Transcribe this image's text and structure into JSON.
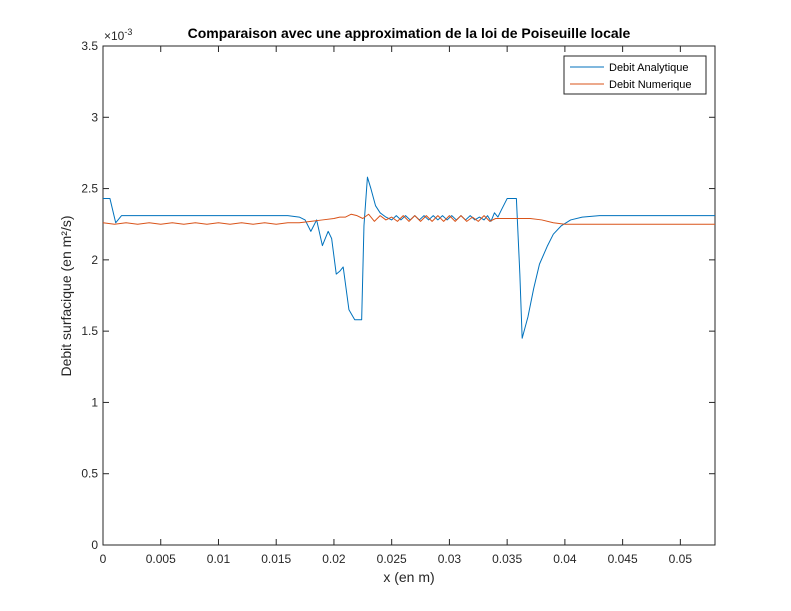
{
  "chart_data": {
    "type": "line",
    "title": "Comparaison avec une approximation de la loi de Poiseuille locale",
    "xlabel": "x (en m)",
    "ylabel": "Debit surfacique (en m²/s)",
    "exponent_label": "×10",
    "exponent_power": "-3",
    "xlim": [
      0,
      0.053
    ],
    "ylim": [
      0,
      3.5
    ],
    "x_ticks": [
      0,
      0.005,
      0.01,
      0.015,
      0.02,
      0.025,
      0.03,
      0.035,
      0.04,
      0.045,
      0.05
    ],
    "x_tick_labels": [
      "0",
      "0.005",
      "0.01",
      "0.015",
      "0.02",
      "0.025",
      "0.03",
      "0.035",
      "0.04",
      "0.045",
      "0.05"
    ],
    "y_ticks": [
      0,
      0.5,
      1,
      1.5,
      2,
      2.5,
      3,
      3.5
    ],
    "y_tick_labels": [
      "0",
      "0.5",
      "1",
      "1.5",
      "2",
      "2.5",
      "3",
      "3.5"
    ],
    "grid": false,
    "legend_position": "top-right",
    "series": [
      {
        "name": "Debit Analytique",
        "color": "#0072BD",
        "points": [
          [
            0,
            2.43
          ],
          [
            0.0006,
            2.43
          ],
          [
            0.0011,
            2.26
          ],
          [
            0.0016,
            2.31
          ],
          [
            0.003,
            2.31
          ],
          [
            0.006,
            2.31
          ],
          [
            0.009,
            2.31
          ],
          [
            0.012,
            2.31
          ],
          [
            0.014,
            2.31
          ],
          [
            0.016,
            2.31
          ],
          [
            0.017,
            2.3
          ],
          [
            0.0175,
            2.28
          ],
          [
            0.018,
            2.2
          ],
          [
            0.0185,
            2.28
          ],
          [
            0.019,
            2.1
          ],
          [
            0.0195,
            2.2
          ],
          [
            0.0198,
            2.15
          ],
          [
            0.0202,
            1.9
          ],
          [
            0.0205,
            1.92
          ],
          [
            0.0208,
            1.95
          ],
          [
            0.0213,
            1.65
          ],
          [
            0.0218,
            1.58
          ],
          [
            0.0224,
            1.58
          ],
          [
            0.0226,
            2.24
          ],
          [
            0.0229,
            2.58
          ],
          [
            0.0232,
            2.5
          ],
          [
            0.0236,
            2.38
          ],
          [
            0.024,
            2.33
          ],
          [
            0.0245,
            2.3
          ],
          [
            0.025,
            2.28
          ],
          [
            0.0254,
            2.31
          ],
          [
            0.0258,
            2.28
          ],
          [
            0.0262,
            2.31
          ],
          [
            0.0266,
            2.28
          ],
          [
            0.027,
            2.31
          ],
          [
            0.0274,
            2.28
          ],
          [
            0.0278,
            2.31
          ],
          [
            0.0282,
            2.28
          ],
          [
            0.0286,
            2.31
          ],
          [
            0.029,
            2.28
          ],
          [
            0.0294,
            2.31
          ],
          [
            0.0298,
            2.28
          ],
          [
            0.0302,
            2.31
          ],
          [
            0.0306,
            2.28
          ],
          [
            0.031,
            2.31
          ],
          [
            0.0314,
            2.28
          ],
          [
            0.0318,
            2.31
          ],
          [
            0.0322,
            2.28
          ],
          [
            0.0326,
            2.3
          ],
          [
            0.033,
            2.28
          ],
          [
            0.0333,
            2.31
          ],
          [
            0.0336,
            2.27
          ],
          [
            0.0339,
            2.33
          ],
          [
            0.0342,
            2.3
          ],
          [
            0.0345,
            2.35
          ],
          [
            0.035,
            2.43
          ],
          [
            0.0358,
            2.43
          ],
          [
            0.0361,
            1.9
          ],
          [
            0.0363,
            1.45
          ],
          [
            0.0368,
            1.6
          ],
          [
            0.0373,
            1.8
          ],
          [
            0.0378,
            1.97
          ],
          [
            0.0385,
            2.1
          ],
          [
            0.039,
            2.18
          ],
          [
            0.0397,
            2.24
          ],
          [
            0.0405,
            2.28
          ],
          [
            0.0415,
            2.3
          ],
          [
            0.043,
            2.31
          ],
          [
            0.046,
            2.31
          ],
          [
            0.05,
            2.31
          ],
          [
            0.053,
            2.31
          ]
        ]
      },
      {
        "name": "Debit Numerique",
        "color": "#D95319",
        "points": [
          [
            0,
            2.26
          ],
          [
            0.001,
            2.25
          ],
          [
            0.002,
            2.26
          ],
          [
            0.003,
            2.25
          ],
          [
            0.004,
            2.26
          ],
          [
            0.005,
            2.25
          ],
          [
            0.006,
            2.26
          ],
          [
            0.007,
            2.25
          ],
          [
            0.008,
            2.26
          ],
          [
            0.009,
            2.25
          ],
          [
            0.01,
            2.26
          ],
          [
            0.011,
            2.25
          ],
          [
            0.012,
            2.26
          ],
          [
            0.013,
            2.25
          ],
          [
            0.014,
            2.26
          ],
          [
            0.015,
            2.25
          ],
          [
            0.016,
            2.26
          ],
          [
            0.017,
            2.26
          ],
          [
            0.018,
            2.27
          ],
          [
            0.019,
            2.28
          ],
          [
            0.02,
            2.29
          ],
          [
            0.0205,
            2.3
          ],
          [
            0.021,
            2.3
          ],
          [
            0.0215,
            2.32
          ],
          [
            0.022,
            2.31
          ],
          [
            0.0225,
            2.29
          ],
          [
            0.023,
            2.32
          ],
          [
            0.0235,
            2.27
          ],
          [
            0.024,
            2.31
          ],
          [
            0.0245,
            2.28
          ],
          [
            0.025,
            2.3
          ],
          [
            0.0255,
            2.27
          ],
          [
            0.026,
            2.31
          ],
          [
            0.0265,
            2.27
          ],
          [
            0.027,
            2.31
          ],
          [
            0.0275,
            2.27
          ],
          [
            0.028,
            2.31
          ],
          [
            0.0285,
            2.27
          ],
          [
            0.029,
            2.31
          ],
          [
            0.0295,
            2.27
          ],
          [
            0.03,
            2.31
          ],
          [
            0.0305,
            2.27
          ],
          [
            0.031,
            2.31
          ],
          [
            0.0315,
            2.27
          ],
          [
            0.032,
            2.3
          ],
          [
            0.0325,
            2.27
          ],
          [
            0.033,
            2.31
          ],
          [
            0.0335,
            2.27
          ],
          [
            0.034,
            2.29
          ],
          [
            0.0345,
            2.29
          ],
          [
            0.035,
            2.29
          ],
          [
            0.036,
            2.29
          ],
          [
            0.037,
            2.29
          ],
          [
            0.038,
            2.28
          ],
          [
            0.039,
            2.26
          ],
          [
            0.04,
            2.25
          ],
          [
            0.042,
            2.25
          ],
          [
            0.045,
            2.25
          ],
          [
            0.048,
            2.25
          ],
          [
            0.05,
            2.25
          ],
          [
            0.053,
            2.25
          ]
        ]
      }
    ]
  }
}
